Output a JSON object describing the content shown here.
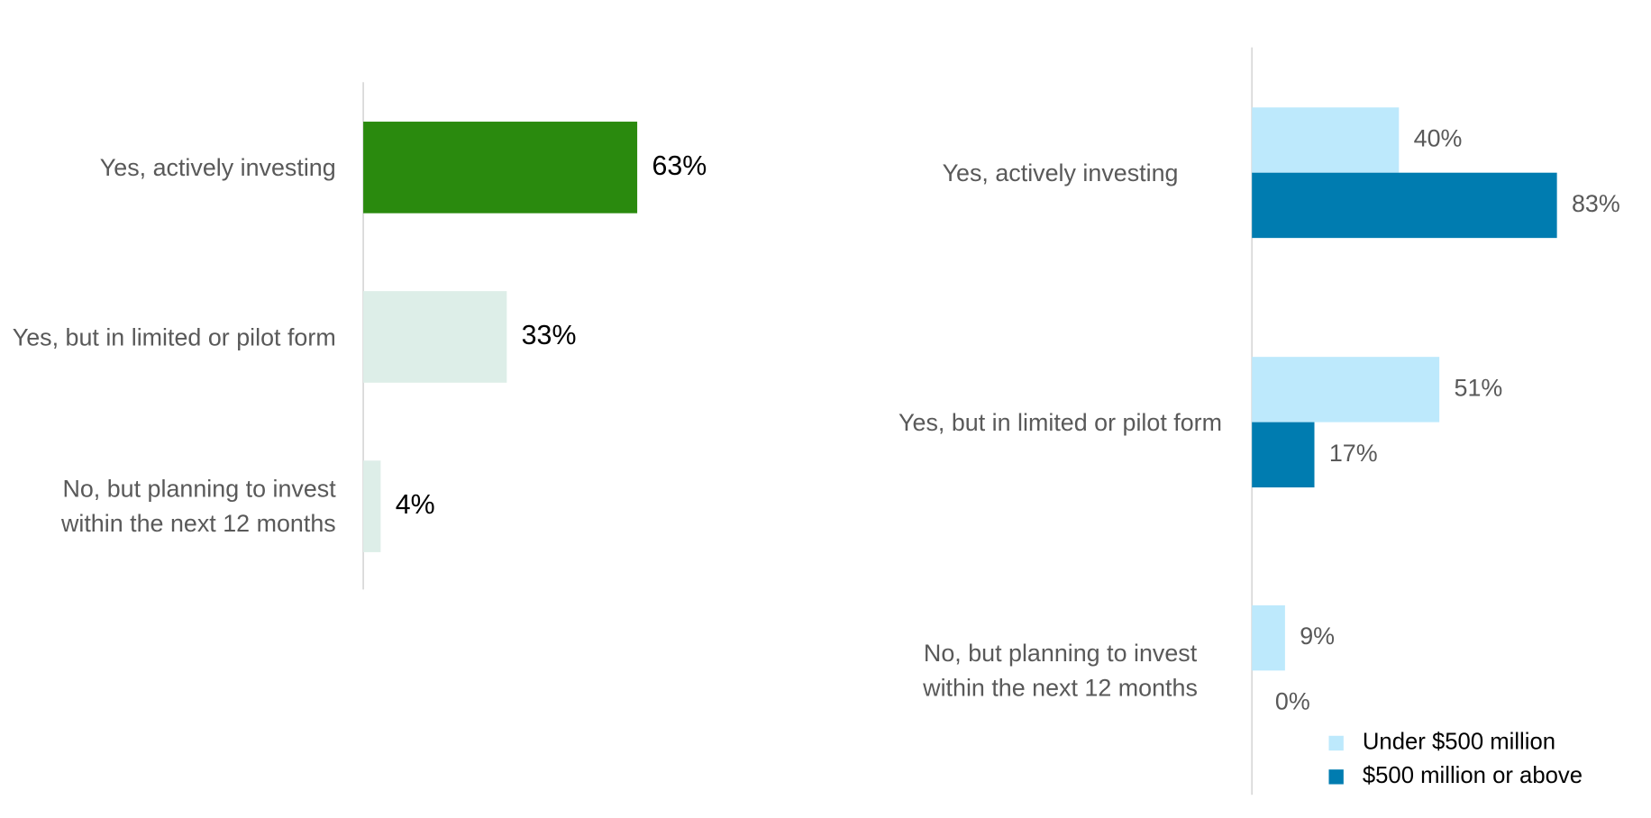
{
  "chart_data": [
    {
      "type": "hbar",
      "categories": [
        "Yes, actively investing",
        "Yes, but in limited or pilot form",
        "No, but planning to invest within the next 12 months"
      ],
      "values": [
        63,
        33,
        4
      ],
      "value_labels": [
        "63%",
        "33%",
        "4%"
      ],
      "colors": [
        "#2a8a0e",
        "#ddeee8",
        "#ddeee8"
      ],
      "xlim": [
        0,
        100
      ]
    },
    {
      "type": "grouped_hbar",
      "categories": [
        "Yes, actively investing",
        "Yes, but in limited or pilot form",
        "No, but planning to invest within the next 12 months"
      ],
      "series": [
        {
          "name": "Under $500 million",
          "color": "#bde9fc",
          "values": [
            40,
            51,
            9
          ],
          "value_labels": [
            "40%",
            "51%",
            "9%"
          ]
        },
        {
          "name": "$500 million or above",
          "color": "#007cb0",
          "values": [
            83,
            17,
            0
          ],
          "value_labels": [
            "83%",
            "17%",
            "0%"
          ]
        }
      ],
      "xlim": [
        0,
        100
      ]
    }
  ]
}
